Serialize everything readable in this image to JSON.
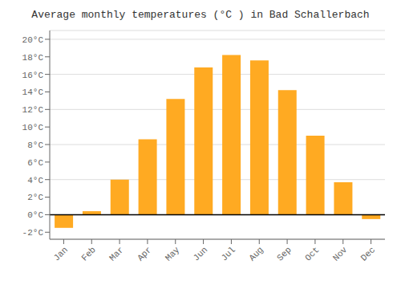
{
  "chart_data": {
    "type": "bar",
    "title": "Average monthly temperatures (°C ) in Bad Schallerbach",
    "categories": [
      "Jan",
      "Feb",
      "Mar",
      "Apr",
      "May",
      "Jun",
      "Jul",
      "Aug",
      "Sep",
      "Oct",
      "Nov",
      "Dec"
    ],
    "values": [
      -1.5,
      0.4,
      4.0,
      8.6,
      13.2,
      16.8,
      18.2,
      17.6,
      14.2,
      9.0,
      3.7,
      -0.5
    ],
    "color": "#FFAA22",
    "ylim": [
      -2.8,
      21.0
    ],
    "yticks": [
      {
        "value": -2,
        "label": "-2°C"
      },
      {
        "value": 0,
        "label": "0°C"
      },
      {
        "value": 2,
        "label": "2°C"
      },
      {
        "value": 4,
        "label": "4°C"
      },
      {
        "value": 6,
        "label": "6°C"
      },
      {
        "value": 8,
        "label": "8°C"
      },
      {
        "value": 10,
        "label": "10°C"
      },
      {
        "value": 12,
        "label": "12°C"
      },
      {
        "value": 14,
        "label": "14°C"
      },
      {
        "value": 16,
        "label": "16°C"
      },
      {
        "value": 18,
        "label": "18°C"
      },
      {
        "value": 20,
        "label": "20°C"
      }
    ],
    "grid": true
  }
}
